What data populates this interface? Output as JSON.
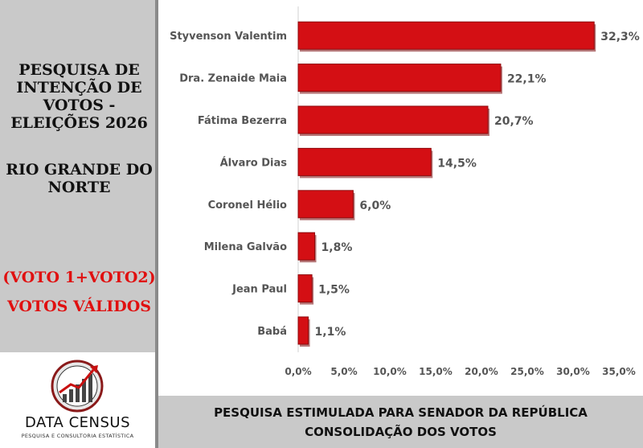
{
  "left_panel": {
    "title_lines": [
      "PESQUISA DE",
      "INTENÇÃO DE",
      "VOTOS -",
      "ELEIÇÕES 2026"
    ],
    "region_lines": [
      "RIO GRANDE DO",
      "NORTE"
    ],
    "note_line1": "(VOTO 1+VOTO2)",
    "note_line2": "VOTOS VÁLIDOS"
  },
  "logo": {
    "name": "DATA CENSUS",
    "tagline": "PESQUISA E CONSULTORIA ESTATÍSTICA"
  },
  "footer": {
    "line1": "PESQUISA ESTIMULADA PARA SENADOR DA REPÚBLICA",
    "line2": "CONSOLIDAÇÃO DOS VOTOS"
  },
  "colors": {
    "bar": "#d40f14",
    "bar_edge": "#8e0a0d",
    "accent_text": "#e01010",
    "panel": "#c9c9c9"
  },
  "chart_data": {
    "type": "bar",
    "orientation": "horizontal",
    "categories": [
      "Styvenson Valentim",
      "Dra. Zenaide Maia",
      "Fátima Bezerra",
      "Álvaro Dias",
      "Coronel Hélio",
      "Milena Galvão",
      "Jean Paul",
      "Babá"
    ],
    "values": [
      32.3,
      22.1,
      20.7,
      14.5,
      6.0,
      1.8,
      1.5,
      1.1
    ],
    "data_labels": [
      "32,3%",
      "22,1%",
      "20,7%",
      "14,5%",
      "6,0%",
      "1,8%",
      "1,5%",
      "1,1%"
    ],
    "xlim": [
      0,
      35
    ],
    "xticks": [
      "0,0%",
      "5,0%",
      "10,0%",
      "15,0%",
      "20,0%",
      "25,0%",
      "30,0%",
      "35,0%"
    ],
    "grid": false,
    "legend": "none"
  }
}
